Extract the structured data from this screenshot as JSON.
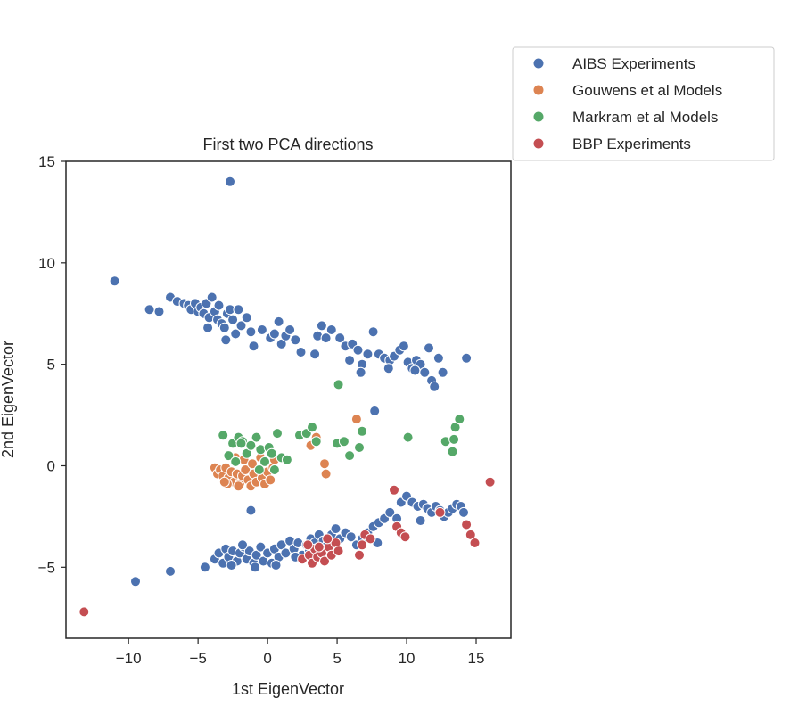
{
  "chart_data": {
    "type": "scatter",
    "title": "First two PCA directions",
    "xlabel": "1st EigenVector",
    "ylabel": "2nd EigenVector",
    "xlim": [
      -14.5,
      17.5
    ],
    "ylim": [
      -8.5,
      15
    ],
    "xticks": [
      -10,
      -5,
      0,
      5,
      10,
      15
    ],
    "yticks": [
      -5,
      0,
      5,
      10,
      15
    ],
    "xtick_labels": [
      "−10",
      "−5",
      "0",
      "5",
      "10",
      "15"
    ],
    "ytick_labels": [
      "−5",
      "0",
      "5",
      "10",
      "15"
    ],
    "grid": false,
    "legend_position": "upper-right-outside",
    "series": [
      {
        "name": "AIBS Experiments",
        "color": "#4c72b0",
        "points": [
          [
            -2.7,
            14.0
          ],
          [
            -11.0,
            9.1
          ],
          [
            -8.5,
            7.7
          ],
          [
            -7.8,
            7.6
          ],
          [
            -7.0,
            8.3
          ],
          [
            -6.5,
            8.1
          ],
          [
            -6.0,
            8.0
          ],
          [
            -5.7,
            7.9
          ],
          [
            -5.5,
            7.7
          ],
          [
            -5.2,
            8.0
          ],
          [
            -5.0,
            7.6
          ],
          [
            -4.8,
            7.8
          ],
          [
            -4.6,
            7.5
          ],
          [
            -4.4,
            8.0
          ],
          [
            -4.2,
            7.3
          ],
          [
            -4.0,
            8.3
          ],
          [
            -3.8,
            7.6
          ],
          [
            -3.6,
            7.2
          ],
          [
            -3.5,
            7.9
          ],
          [
            -3.3,
            7.0
          ],
          [
            -3.1,
            6.8
          ],
          [
            -2.9,
            7.5
          ],
          [
            -2.7,
            7.7
          ],
          [
            -2.5,
            7.2
          ],
          [
            -2.3,
            6.5
          ],
          [
            -2.1,
            7.7
          ],
          [
            -1.9,
            6.9
          ],
          [
            -3.0,
            6.2
          ],
          [
            -1.5,
            7.3
          ],
          [
            -1.2,
            6.6
          ],
          [
            -1.0,
            5.9
          ],
          [
            -0.4,
            6.7
          ],
          [
            0.2,
            6.3
          ],
          [
            0.5,
            6.5
          ],
          [
            0.8,
            7.1
          ],
          [
            1.0,
            6.0
          ],
          [
            1.3,
            6.4
          ],
          [
            1.6,
            6.7
          ],
          [
            2.0,
            6.2
          ],
          [
            -4.3,
            6.8
          ],
          [
            3.6,
            6.4
          ],
          [
            3.9,
            6.9
          ],
          [
            4.2,
            6.3
          ],
          [
            4.6,
            6.7
          ],
          [
            5.2,
            6.3
          ],
          [
            5.6,
            5.9
          ],
          [
            6.1,
            6.0
          ],
          [
            6.5,
            5.7
          ],
          [
            6.8,
            5.0
          ],
          [
            7.2,
            5.5
          ],
          [
            7.6,
            6.6
          ],
          [
            8.0,
            5.5
          ],
          [
            8.4,
            5.3
          ],
          [
            8.8,
            5.2
          ],
          [
            9.1,
            5.4
          ],
          [
            9.5,
            5.7
          ],
          [
            9.8,
            5.9
          ],
          [
            10.1,
            5.1
          ],
          [
            10.4,
            4.8
          ],
          [
            10.7,
            5.2
          ],
          [
            11.0,
            5.0
          ],
          [
            11.3,
            4.6
          ],
          [
            11.6,
            5.8
          ],
          [
            11.8,
            4.2
          ],
          [
            12.0,
            3.9
          ],
          [
            12.3,
            5.3
          ],
          [
            12.6,
            4.6
          ],
          [
            14.3,
            5.3
          ],
          [
            3.4,
            5.5
          ],
          [
            2.4,
            5.6
          ],
          [
            5.9,
            5.2
          ],
          [
            6.7,
            4.6
          ],
          [
            8.7,
            4.8
          ],
          [
            10.6,
            4.7
          ],
          [
            7.7,
            2.7
          ],
          [
            -1.2,
            -2.2
          ],
          [
            -9.5,
            -5.7
          ],
          [
            -7.0,
            -5.2
          ],
          [
            -4.5,
            -5.0
          ],
          [
            -3.8,
            -4.6
          ],
          [
            -3.5,
            -4.3
          ],
          [
            -3.2,
            -4.8
          ],
          [
            -3.0,
            -4.1
          ],
          [
            -2.8,
            -4.5
          ],
          [
            -2.5,
            -4.2
          ],
          [
            -2.2,
            -4.7
          ],
          [
            -2.0,
            -4.3
          ],
          [
            -1.7,
            -4.0
          ],
          [
            -1.5,
            -4.6
          ],
          [
            -1.3,
            -4.2
          ],
          [
            -1.0,
            -4.8
          ],
          [
            -0.8,
            -4.4
          ],
          [
            -0.5,
            -4.0
          ],
          [
            -0.3,
            -4.7
          ],
          [
            0.0,
            -4.3
          ],
          [
            0.3,
            -4.8
          ],
          [
            0.5,
            -4.1
          ],
          [
            0.8,
            -4.5
          ],
          [
            1.0,
            -3.9
          ],
          [
            1.3,
            -4.3
          ],
          [
            1.6,
            -3.7
          ],
          [
            1.9,
            -4.1
          ],
          [
            2.2,
            -3.8
          ],
          [
            2.5,
            -4.4
          ],
          [
            2.8,
            -3.9
          ],
          [
            3.1,
            -3.6
          ],
          [
            3.4,
            -3.8
          ],
          [
            3.7,
            -3.4
          ],
          [
            4.0,
            -3.7
          ],
          [
            4.3,
            -3.9
          ],
          [
            4.6,
            -3.4
          ],
          [
            4.9,
            -3.1
          ],
          [
            5.2,
            -3.6
          ],
          [
            5.6,
            -3.3
          ],
          [
            6.0,
            -3.5
          ],
          [
            6.4,
            -3.9
          ],
          [
            6.8,
            -3.6
          ],
          [
            7.2,
            -3.3
          ],
          [
            7.6,
            -3.0
          ],
          [
            8.0,
            -2.8
          ],
          [
            8.4,
            -2.6
          ],
          [
            8.8,
            -2.3
          ],
          [
            9.3,
            -2.6
          ],
          [
            9.6,
            -1.8
          ],
          [
            10.0,
            -1.5
          ],
          [
            10.4,
            -1.8
          ],
          [
            10.8,
            -2.0
          ],
          [
            11.2,
            -1.9
          ],
          [
            11.5,
            -2.1
          ],
          [
            11.8,
            -2.3
          ],
          [
            12.1,
            -2.0
          ],
          [
            12.4,
            -2.2
          ],
          [
            12.7,
            -2.5
          ],
          [
            13.0,
            -2.3
          ],
          [
            13.3,
            -2.1
          ],
          [
            13.6,
            -1.9
          ],
          [
            13.9,
            -2.0
          ],
          [
            14.1,
            -2.3
          ],
          [
            11.0,
            -2.7
          ],
          [
            7.9,
            -3.8
          ],
          [
            -2.6,
            -4.9
          ],
          [
            -0.9,
            -5.0
          ],
          [
            0.6,
            -4.9
          ],
          [
            2.0,
            -4.5
          ],
          [
            -1.8,
            -3.9
          ],
          [
            3.0,
            -4.2
          ]
        ]
      },
      {
        "name": "Gouwens et al Models",
        "color": "#dd8452",
        "points": [
          [
            -3.8,
            -0.1
          ],
          [
            -3.6,
            -0.4
          ],
          [
            -3.4,
            -0.2
          ],
          [
            -3.2,
            -0.5
          ],
          [
            -3.0,
            -0.1
          ],
          [
            -2.8,
            -0.6
          ],
          [
            -2.6,
            -0.3
          ],
          [
            -2.4,
            -0.8
          ],
          [
            -2.2,
            -0.4
          ],
          [
            -2.0,
            -0.9
          ],
          [
            -1.8,
            -0.5
          ],
          [
            -1.6,
            -0.2
          ],
          [
            -1.4,
            -0.7
          ],
          [
            -1.2,
            -1.0
          ],
          [
            -1.0,
            -0.4
          ],
          [
            -0.8,
            -0.8
          ],
          [
            -0.6,
            -0.2
          ],
          [
            -0.4,
            -0.6
          ],
          [
            -0.2,
            -0.9
          ],
          [
            0.0,
            -0.3
          ],
          [
            0.2,
            -0.7
          ],
          [
            0.4,
            -0.1
          ],
          [
            -2.9,
            -0.9
          ],
          [
            -2.3,
            0.4
          ],
          [
            -1.7,
            0.3
          ],
          [
            -1.1,
            0.1
          ],
          [
            -0.5,
            0.4
          ],
          [
            0.5,
            0.3
          ],
          [
            -3.1,
            -0.8
          ],
          [
            -2.1,
            -1.0
          ],
          [
            3.1,
            1.0
          ],
          [
            3.5,
            1.4
          ],
          [
            4.1,
            0.1
          ],
          [
            4.2,
            -0.4
          ],
          [
            6.4,
            2.3
          ]
        ]
      },
      {
        "name": "Markram et al Models",
        "color": "#55a868",
        "points": [
          [
            5.1,
            4.0
          ],
          [
            -3.2,
            1.5
          ],
          [
            -2.5,
            1.1
          ],
          [
            -2.1,
            1.4
          ],
          [
            -1.8,
            1.2
          ],
          [
            -1.5,
            0.6
          ],
          [
            -1.2,
            1.0
          ],
          [
            -0.8,
            1.4
          ],
          [
            -0.5,
            0.8
          ],
          [
            -0.2,
            0.2
          ],
          [
            0.1,
            0.9
          ],
          [
            0.5,
            -0.2
          ],
          [
            0.7,
            1.6
          ],
          [
            1.0,
            0.4
          ],
          [
            1.4,
            0.3
          ],
          [
            -2.8,
            0.5
          ],
          [
            -2.3,
            0.2
          ],
          [
            -1.9,
            1.1
          ],
          [
            -0.6,
            -0.2
          ],
          [
            0.3,
            0.6
          ],
          [
            2.3,
            1.5
          ],
          [
            2.8,
            1.6
          ],
          [
            3.2,
            1.9
          ],
          [
            3.5,
            1.2
          ],
          [
            5.0,
            1.1
          ],
          [
            5.5,
            1.2
          ],
          [
            5.9,
            0.5
          ],
          [
            6.6,
            0.9
          ],
          [
            6.8,
            1.7
          ],
          [
            10.1,
            1.4
          ],
          [
            12.8,
            1.2
          ],
          [
            13.3,
            0.7
          ],
          [
            13.4,
            1.3
          ],
          [
            13.5,
            1.9
          ],
          [
            13.8,
            2.3
          ]
        ]
      },
      {
        "name": "BBP Experiments",
        "color": "#c44e52",
        "points": [
          [
            -13.2,
            -7.2
          ],
          [
            2.5,
            -4.6
          ],
          [
            3.0,
            -4.4
          ],
          [
            3.2,
            -4.8
          ],
          [
            3.4,
            -4.1
          ],
          [
            3.6,
            -4.5
          ],
          [
            3.9,
            -4.3
          ],
          [
            4.1,
            -4.7
          ],
          [
            4.4,
            -4.0
          ],
          [
            4.6,
            -4.4
          ],
          [
            4.9,
            -3.8
          ],
          [
            5.1,
            -4.2
          ],
          [
            6.6,
            -4.4
          ],
          [
            6.8,
            -3.9
          ],
          [
            7.0,
            -3.4
          ],
          [
            7.4,
            -3.6
          ],
          [
            9.1,
            -1.2
          ],
          [
            9.3,
            -3.0
          ],
          [
            9.6,
            -3.3
          ],
          [
            9.9,
            -3.5
          ],
          [
            12.4,
            -2.3
          ],
          [
            14.3,
            -2.9
          ],
          [
            14.6,
            -3.4
          ],
          [
            14.9,
            -3.8
          ],
          [
            16.0,
            -0.8
          ],
          [
            2.9,
            -3.9
          ],
          [
            3.7,
            -4.0
          ],
          [
            4.3,
            -3.6
          ]
        ]
      }
    ]
  }
}
